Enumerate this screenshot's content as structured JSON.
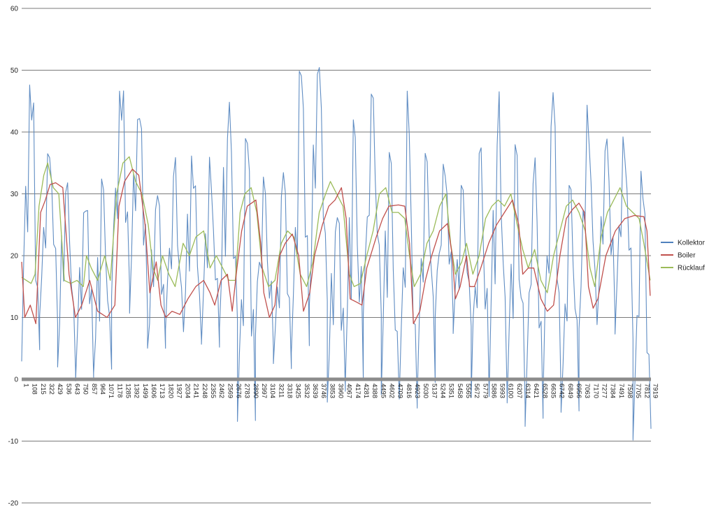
{
  "chart_data": {
    "type": "line",
    "title": "",
    "xlabel": "",
    "ylabel": "",
    "ylim": [
      -20,
      60
    ],
    "yticks": [
      -20,
      -10,
      0,
      10,
      20,
      30,
      40,
      50,
      60
    ],
    "grid": true,
    "legend_position": "right",
    "x_tick_labels": [
      "1",
      "108",
      "215",
      "322",
      "429",
      "536",
      "643",
      "750",
      "857",
      "964",
      "1071",
      "1178",
      "1285",
      "1392",
      "1499",
      "1606",
      "1713",
      "1820",
      "1927",
      "2034",
      "2141",
      "2248",
      "2355",
      "2462",
      "2569",
      "2676",
      "2783",
      "2890",
      "2997",
      "3104",
      "3211",
      "3318",
      "3425",
      "3532",
      "3639",
      "3746",
      "3853",
      "3960",
      "4067",
      "4174",
      "4281",
      "4388",
      "4495",
      "4602",
      "4709",
      "4816",
      "4923",
      "5030",
      "5137",
      "5244",
      "5351",
      "5458",
      "5565",
      "5672",
      "5779",
      "5886",
      "5993",
      "6100",
      "6207",
      "6314",
      "6421",
      "6528",
      "6635",
      "6742",
      "6849",
      "6956",
      "7063",
      "7170",
      "7277",
      "7384",
      "7491",
      "7598",
      "7705",
      "7812",
      "7919"
    ],
    "x_range": [
      1,
      7950
    ],
    "series": [
      {
        "name": "Kollektor",
        "color": "#4f81bd",
        "days": [
          [
            2,
            50
          ],
          [
            8,
            38
          ],
          [
            0,
            36
          ],
          [
            -1,
            33
          ],
          [
            -1,
            34
          ],
          [
            12,
            51
          ],
          [
            10,
            46
          ],
          [
            4,
            32
          ],
          [
            6,
            36
          ],
          [
            5,
            38
          ],
          [
            5,
            37
          ],
          [
            8,
            45
          ],
          [
            -9,
            42
          ],
          [
            5,
            33
          ],
          [
            0,
            35
          ],
          [
            4,
            50
          ],
          [
            10,
            54
          ],
          [
            -4,
            29
          ],
          [
            -3,
            42
          ],
          [
            10,
            50
          ],
          [
            -5,
            38
          ],
          [
            -5,
            48
          ],
          [
            -3,
            42
          ],
          [
            8,
            36
          ],
          [
            7,
            32
          ],
          [
            -5,
            45
          ],
          [
            -4,
            47
          ],
          [
            -6,
            38
          ],
          [
            -8,
            38
          ],
          [
            -3,
            49
          ],
          [
            -7,
            34
          ],
          [
            8,
            45
          ],
          [
            8,
            45
          ],
          [
            5,
            43
          ],
          [
            -10,
            36
          ]
        ]
      },
      {
        "name": "Boiler",
        "color": "#c0504d",
        "points": [
          [
            1,
            19
          ],
          [
            40,
            10
          ],
          [
            110,
            12
          ],
          [
            180,
            9
          ],
          [
            240,
            27
          ],
          [
            300,
            29
          ],
          [
            360,
            31.5
          ],
          [
            430,
            31.8
          ],
          [
            520,
            31
          ],
          [
            600,
            17
          ],
          [
            680,
            10
          ],
          [
            760,
            12
          ],
          [
            860,
            16
          ],
          [
            960,
            11
          ],
          [
            1080,
            10
          ],
          [
            1178,
            12
          ],
          [
            1230,
            28
          ],
          [
            1300,
            32
          ],
          [
            1400,
            34
          ],
          [
            1480,
            33
          ],
          [
            1560,
            25
          ],
          [
            1620,
            14
          ],
          [
            1700,
            19
          ],
          [
            1760,
            12
          ],
          [
            1820,
            10
          ],
          [
            1900,
            11
          ],
          [
            2000,
            10.5
          ],
          [
            2100,
            13
          ],
          [
            2200,
            15
          ],
          [
            2300,
            16
          ],
          [
            2380,
            14
          ],
          [
            2440,
            12
          ],
          [
            2520,
            16
          ],
          [
            2600,
            17
          ],
          [
            2660,
            11
          ],
          [
            2720,
            18
          ],
          [
            2780,
            24
          ],
          [
            2850,
            28
          ],
          [
            2960,
            29
          ],
          [
            3020,
            22
          ],
          [
            3060,
            14
          ],
          [
            3130,
            10
          ],
          [
            3200,
            12
          ],
          [
            3260,
            20
          ],
          [
            3330,
            22
          ],
          [
            3420,
            23.5
          ],
          [
            3500,
            20
          ],
          [
            3560,
            11
          ],
          [
            3640,
            14
          ],
          [
            3700,
            20
          ],
          [
            3800,
            25
          ],
          [
            3880,
            28
          ],
          [
            3960,
            29
          ],
          [
            4040,
            31
          ],
          [
            4100,
            26
          ],
          [
            4150,
            13
          ],
          [
            4230,
            12.5
          ],
          [
            4300,
            12
          ],
          [
            4360,
            18
          ],
          [
            4480,
            23
          ],
          [
            4560,
            26
          ],
          [
            4640,
            28
          ],
          [
            4760,
            28.2
          ],
          [
            4840,
            28
          ],
          [
            4900,
            22
          ],
          [
            4950,
            9
          ],
          [
            5030,
            11
          ],
          [
            5100,
            16
          ],
          [
            5180,
            20
          ],
          [
            5280,
            24
          ],
          [
            5380,
            25.2
          ],
          [
            5440,
            20
          ],
          [
            5480,
            13
          ],
          [
            5540,
            15
          ],
          [
            5620,
            20
          ],
          [
            5660,
            15
          ],
          [
            5720,
            15
          ],
          [
            5800,
            18
          ],
          [
            5900,
            22
          ],
          [
            6000,
            25
          ],
          [
            6100,
            27
          ],
          [
            6200,
            29
          ],
          [
            6280,
            25
          ],
          [
            6330,
            17
          ],
          [
            6400,
            18
          ],
          [
            6470,
            18
          ],
          [
            6560,
            13
          ],
          [
            6640,
            11
          ],
          [
            6720,
            12
          ],
          [
            6800,
            20
          ],
          [
            6880,
            26
          ],
          [
            6960,
            27.5
          ],
          [
            7040,
            28.5
          ],
          [
            7110,
            27
          ],
          [
            7160,
            15
          ],
          [
            7220,
            11.5
          ],
          [
            7280,
            13
          ],
          [
            7380,
            20
          ],
          [
            7500,
            24
          ],
          [
            7620,
            26
          ],
          [
            7740,
            26.5
          ],
          [
            7860,
            26.3
          ],
          [
            7900,
            24
          ],
          [
            7940,
            13.5
          ]
        ]
      },
      {
        "name": "Rücklauf",
        "color": "#9bbb59",
        "points": [
          [
            1,
            16.5
          ],
          [
            60,
            16
          ],
          [
            120,
            15.5
          ],
          [
            170,
            17
          ],
          [
            220,
            28
          ],
          [
            280,
            33
          ],
          [
            330,
            35
          ],
          [
            400,
            31
          ],
          [
            470,
            30
          ],
          [
            540,
            16
          ],
          [
            620,
            15.5
          ],
          [
            700,
            16
          ],
          [
            780,
            15
          ],
          [
            820,
            20
          ],
          [
            880,
            18
          ],
          [
            960,
            16
          ],
          [
            1050,
            20
          ],
          [
            1120,
            16
          ],
          [
            1200,
            30
          ],
          [
            1280,
            35
          ],
          [
            1360,
            36
          ],
          [
            1440,
            32
          ],
          [
            1520,
            30
          ],
          [
            1600,
            25
          ],
          [
            1660,
            18
          ],
          [
            1720,
            16
          ],
          [
            1780,
            20
          ],
          [
            1860,
            17
          ],
          [
            1940,
            15
          ],
          [
            2040,
            22
          ],
          [
            2120,
            20
          ],
          [
            2200,
            23
          ],
          [
            2300,
            24
          ],
          [
            2380,
            18
          ],
          [
            2460,
            20
          ],
          [
            2540,
            18
          ],
          [
            2620,
            16
          ],
          [
            2700,
            16
          ],
          [
            2760,
            27
          ],
          [
            2820,
            30
          ],
          [
            2900,
            31
          ],
          [
            2970,
            27
          ],
          [
            3040,
            18
          ],
          [
            3120,
            15
          ],
          [
            3200,
            16
          ],
          [
            3280,
            22
          ],
          [
            3360,
            24
          ],
          [
            3440,
            23
          ],
          [
            3520,
            17
          ],
          [
            3600,
            15
          ],
          [
            3680,
            19
          ],
          [
            3760,
            27
          ],
          [
            3840,
            30
          ],
          [
            3900,
            32
          ],
          [
            3980,
            30
          ],
          [
            4060,
            28
          ],
          [
            4140,
            17
          ],
          [
            4200,
            15
          ],
          [
            4280,
            15.5
          ],
          [
            4360,
            20
          ],
          [
            4440,
            24
          ],
          [
            4520,
            30
          ],
          [
            4600,
            31
          ],
          [
            4680,
            27
          ],
          [
            4760,
            27
          ],
          [
            4840,
            26
          ],
          [
            4900,
            20
          ],
          [
            4960,
            15
          ],
          [
            5040,
            17
          ],
          [
            5120,
            22
          ],
          [
            5200,
            24
          ],
          [
            5280,
            28
          ],
          [
            5360,
            30
          ],
          [
            5420,
            22
          ],
          [
            5480,
            17
          ],
          [
            5560,
            19
          ],
          [
            5620,
            22
          ],
          [
            5700,
            17
          ],
          [
            5780,
            20
          ],
          [
            5860,
            26
          ],
          [
            5940,
            28
          ],
          [
            6020,
            29
          ],
          [
            6100,
            28
          ],
          [
            6180,
            30
          ],
          [
            6260,
            25
          ],
          [
            6330,
            21
          ],
          [
            6400,
            18
          ],
          [
            6480,
            21
          ],
          [
            6560,
            16
          ],
          [
            6640,
            14
          ],
          [
            6720,
            20
          ],
          [
            6800,
            24
          ],
          [
            6880,
            28
          ],
          [
            6960,
            29
          ],
          [
            7040,
            27
          ],
          [
            7120,
            24
          ],
          [
            7180,
            18
          ],
          [
            7240,
            15
          ],
          [
            7320,
            23
          ],
          [
            7400,
            27
          ],
          [
            7480,
            29
          ],
          [
            7560,
            31
          ],
          [
            7640,
            28
          ],
          [
            7720,
            27
          ],
          [
            7800,
            26
          ],
          [
            7860,
            22
          ],
          [
            7940,
            16
          ]
        ]
      }
    ]
  }
}
